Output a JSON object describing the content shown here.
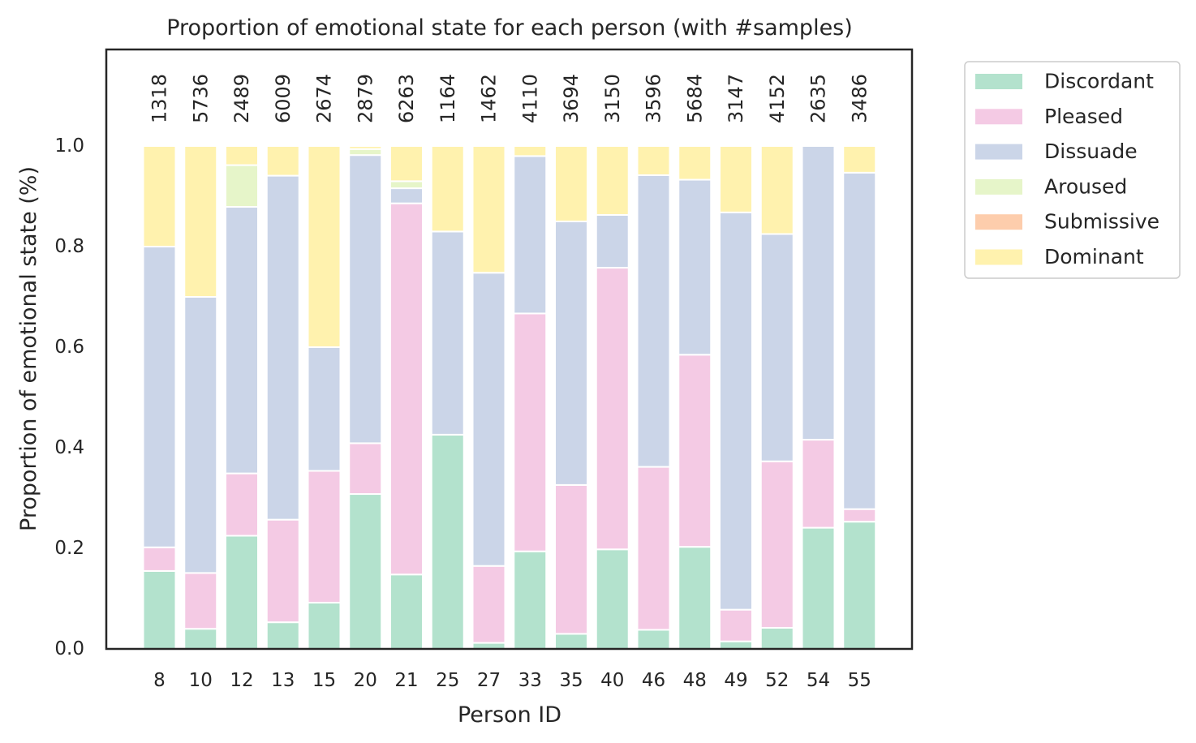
{
  "chart_data": {
    "type": "bar",
    "stacked": true,
    "title": "Proportion of emotional state for each person (with #samples)",
    "xlabel": "Person ID",
    "ylabel": "Proportion of emotional state (%)",
    "ylim": [
      0,
      1.2
    ],
    "yticks": [
      "0.0",
      "0.2",
      "0.4",
      "0.6",
      "0.8",
      "1.0"
    ],
    "grid": false,
    "legend_position": "outside-right-top",
    "categories": [
      "8",
      "10",
      "12",
      "13",
      "15",
      "20",
      "21",
      "25",
      "27",
      "33",
      "35",
      "40",
      "46",
      "48",
      "49",
      "52",
      "54",
      "55"
    ],
    "sample_counts": [
      "1318",
      "5736",
      "2489",
      "6009",
      "2674",
      "2879",
      "6263",
      "1164",
      "1462",
      "4110",
      "3694",
      "3150",
      "3596",
      "5684",
      "3147",
      "4152",
      "2635",
      "3486"
    ],
    "series": [
      {
        "name": "Discordant",
        "color": "#b3e2cd",
        "values": [
          0.155,
          0.04,
          0.225,
          0.053,
          0.092,
          0.308,
          0.148,
          0.426,
          0.012,
          0.194,
          0.03,
          0.198,
          0.038,
          0.203,
          0.015,
          0.042,
          0.241,
          0.253
        ]
      },
      {
        "name": "Pleased",
        "color": "#f4cae4",
        "values": [
          0.047,
          0.111,
          0.124,
          0.204,
          0.262,
          0.101,
          0.738,
          0.0,
          0.153,
          0.473,
          0.296,
          0.56,
          0.324,
          0.382,
          0.063,
          0.331,
          0.175,
          0.025
        ]
      },
      {
        "name": "Dissuade",
        "color": "#cbd5e8",
        "values": [
          0.598,
          0.549,
          0.53,
          0.684,
          0.246,
          0.573,
          0.03,
          0.404,
          0.583,
          0.313,
          0.524,
          0.105,
          0.58,
          0.348,
          0.79,
          0.452,
          0.584,
          0.669
        ]
      },
      {
        "name": "Aroused",
        "color": "#e6f5c9",
        "values": [
          0.0,
          0.0,
          0.083,
          0.0,
          0.0,
          0.012,
          0.014,
          0.0,
          0.0,
          0.0,
          0.0,
          0.0,
          0.0,
          0.0,
          0.0,
          0.0,
          0.0,
          0.0
        ]
      },
      {
        "name": "Submissive",
        "color": "#fdcdac",
        "values": [
          0,
          0,
          0,
          0,
          0,
          0,
          0,
          0,
          0,
          0,
          0,
          0,
          0,
          0,
          0,
          0,
          0,
          0
        ]
      },
      {
        "name": "Dominant",
        "color": "#fff2ae",
        "values": [
          0.2,
          0.3,
          0.038,
          0.059,
          0.4,
          0.006,
          0.07,
          0.17,
          0.252,
          0.02,
          0.15,
          0.137,
          0.058,
          0.067,
          0.132,
          0.175,
          0.0,
          0.053
        ]
      }
    ]
  }
}
